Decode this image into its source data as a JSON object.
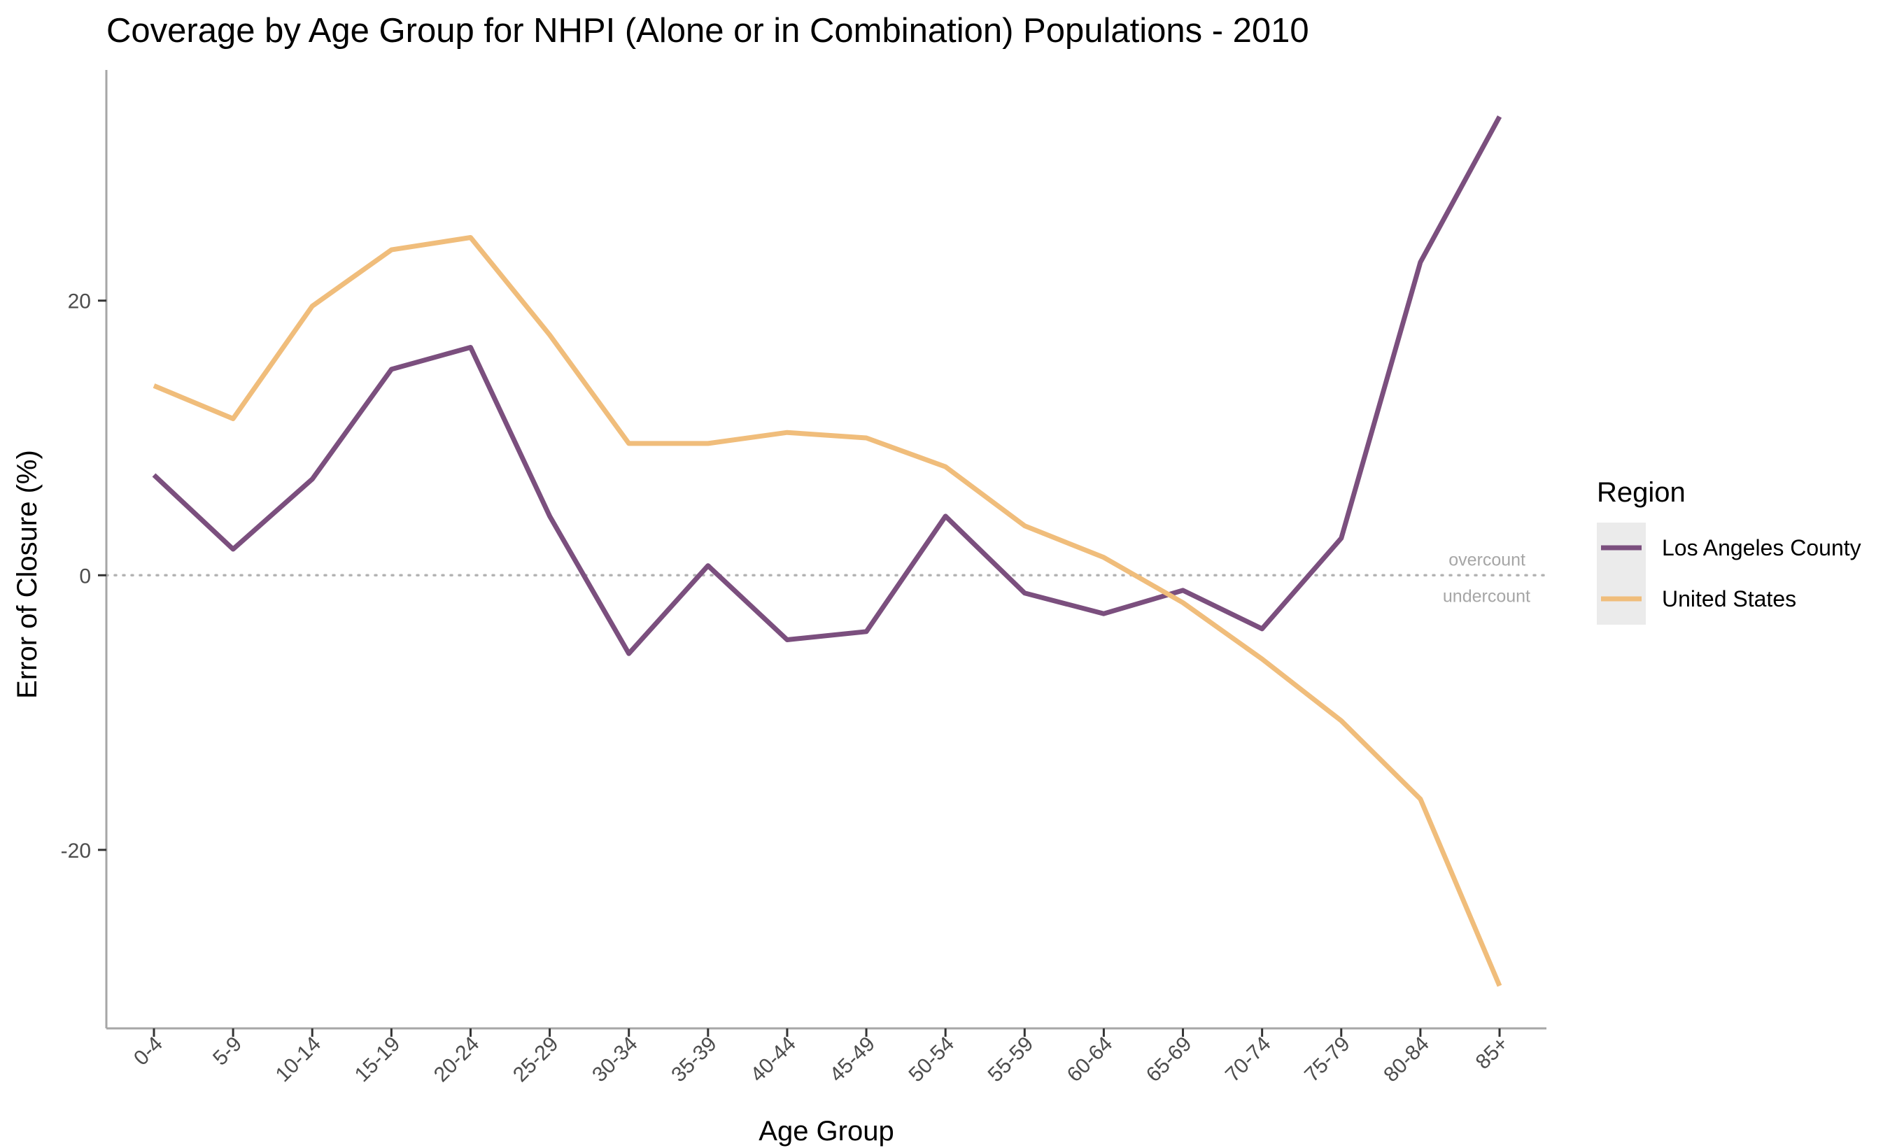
{
  "chart_data": {
    "type": "line",
    "title": "Coverage by Age Group for NHPI (Alone or in Combination) Populations - 2010",
    "xlabel": "Age Group",
    "ylabel": "Error of Closure (%)",
    "categories": [
      "0-4",
      "5-9",
      "10-14",
      "15-19",
      "20-24",
      "25-29",
      "30-34",
      "35-39",
      "40-44",
      "45-49",
      "50-54",
      "55-59",
      "60-64",
      "65-69",
      "70-74",
      "75-79",
      "80-84",
      "85+"
    ],
    "yticks": [
      -20,
      0,
      20
    ],
    "ylim": [
      -33,
      36.8
    ],
    "grid": false,
    "legend": {
      "title": "Region",
      "position": "right"
    },
    "reference_line": {
      "y": 0,
      "style": "dotted",
      "label_above": "overcount",
      "label_below": "undercount"
    },
    "series": [
      {
        "name": "Los Angeles County",
        "color": "#7b4f7e",
        "values": [
          7.3,
          1.9,
          7.0,
          15.0,
          16.6,
          4.3,
          -5.7,
          0.7,
          -4.7,
          -4.1,
          4.3,
          -1.3,
          -2.8,
          -1.1,
          -3.9,
          2.7,
          22.8,
          33.4
        ]
      },
      {
        "name": "United States",
        "color": "#f0bd7b",
        "values": [
          13.8,
          11.4,
          19.6,
          23.7,
          24.6,
          17.5,
          9.6,
          9.6,
          10.4,
          10.0,
          7.9,
          3.6,
          1.3,
          -2.0,
          -6.1,
          -10.6,
          -16.3,
          -29.9
        ]
      }
    ]
  }
}
